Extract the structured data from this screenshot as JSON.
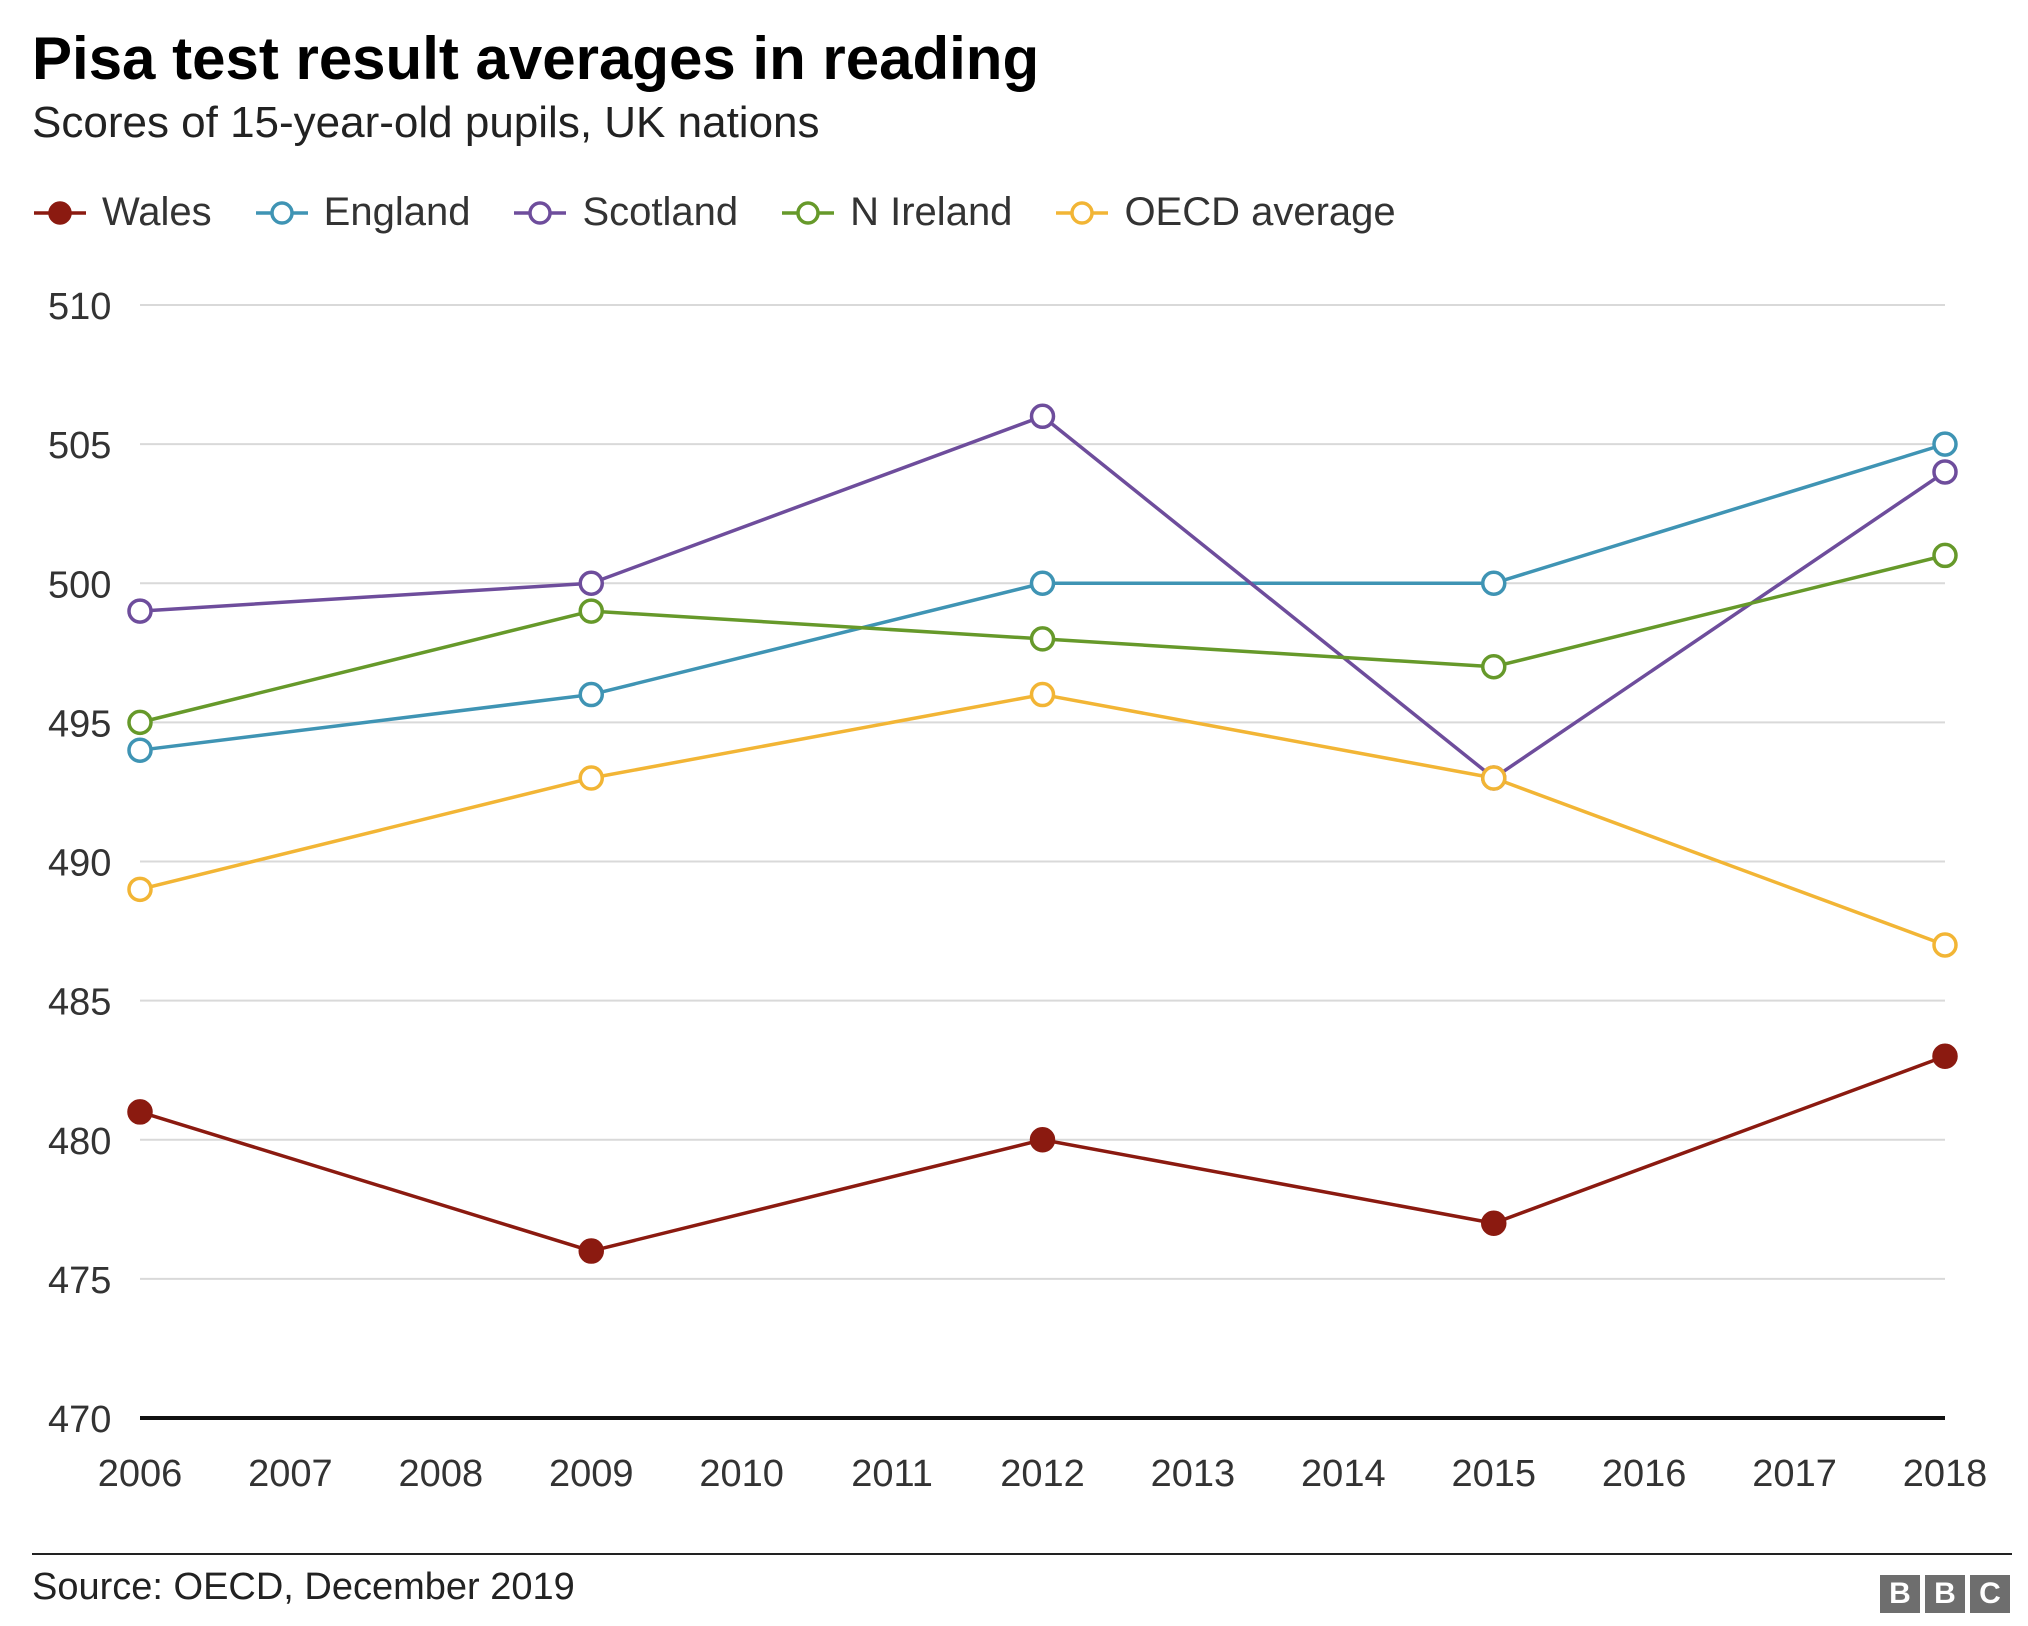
{
  "chart_data": {
    "type": "line",
    "title": "Pisa test result averages in reading",
    "subtitle": "Scores of 15-year-old pupils, UK nations",
    "x": [
      2006,
      2007,
      2008,
      2009,
      2010,
      2011,
      2012,
      2013,
      2014,
      2015,
      2016,
      2017,
      2018
    ],
    "ylim": [
      470,
      510
    ],
    "yticks": [
      470,
      475,
      480,
      485,
      490,
      495,
      500,
      505,
      510
    ],
    "grid": true,
    "legend_position": "top-left",
    "series": [
      {
        "name": "Wales",
        "color": "#8b1a10",
        "filled": true,
        "points": [
          [
            2006,
            481
          ],
          [
            2009,
            476
          ],
          [
            2012,
            480
          ],
          [
            2015,
            477
          ],
          [
            2018,
            483
          ]
        ]
      },
      {
        "name": "England",
        "color": "#3f94b4",
        "filled": false,
        "points": [
          [
            2006,
            494
          ],
          [
            2009,
            496
          ],
          [
            2012,
            500
          ],
          [
            2015,
            500
          ],
          [
            2018,
            505
          ]
        ]
      },
      {
        "name": "Scotland",
        "color": "#6e4d9c",
        "filled": false,
        "points": [
          [
            2006,
            499
          ],
          [
            2009,
            500
          ],
          [
            2012,
            506
          ],
          [
            2015,
            493
          ],
          [
            2018,
            504
          ]
        ]
      },
      {
        "name": "N Ireland",
        "color": "#66992a",
        "filled": false,
        "points": [
          [
            2006,
            495
          ],
          [
            2009,
            499
          ],
          [
            2012,
            498
          ],
          [
            2015,
            497
          ],
          [
            2018,
            501
          ]
        ]
      },
      {
        "name": "OECD average",
        "color": "#f2b535",
        "filled": false,
        "points": [
          [
            2006,
            489
          ],
          [
            2009,
            493
          ],
          [
            2012,
            496
          ],
          [
            2015,
            493
          ],
          [
            2018,
            487
          ]
        ]
      }
    ]
  },
  "footer": {
    "source": "Source: OECD, December 2019",
    "logo_letters": [
      "B",
      "B",
      "C"
    ]
  }
}
